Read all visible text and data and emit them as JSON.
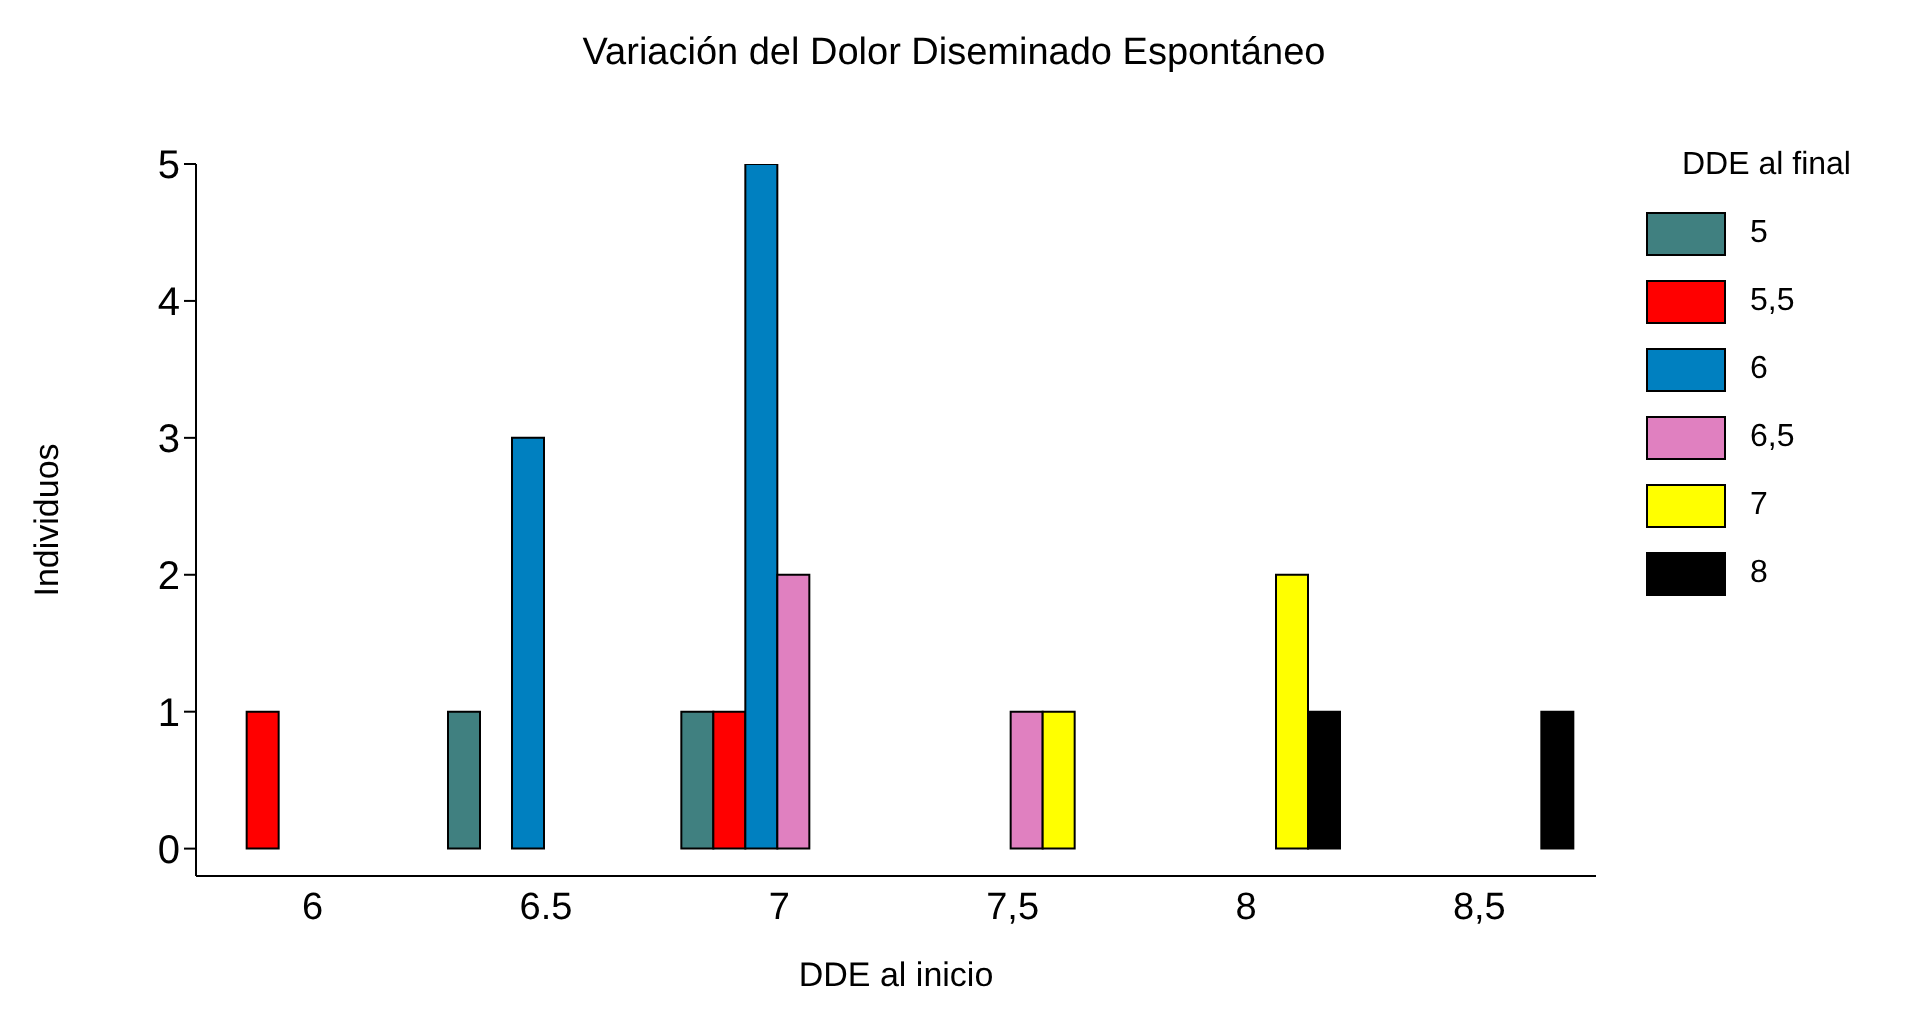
{
  "chart_data": {
    "type": "bar",
    "title": "Variación del Dolor Diseminado Espontáneo",
    "xlabel": "DDE al inicio",
    "ylabel": "Individuos",
    "legend_title": "DDE al final",
    "categories": [
      "6",
      "6.5",
      "7",
      "7,5",
      "8",
      "8,5"
    ],
    "series": [
      {
        "name": "5",
        "color": "#408080",
        "values": [
          0,
          1,
          1,
          0,
          0,
          0
        ]
      },
      {
        "name": "5,5",
        "color": "#ff0000",
        "values": [
          1,
          0,
          1,
          0,
          0,
          0
        ]
      },
      {
        "name": "6",
        "color": "#0080c0",
        "values": [
          0,
          3,
          5,
          0,
          0,
          0
        ]
      },
      {
        "name": "6,5",
        "color": "#e080c0",
        "values": [
          0,
          0,
          2,
          1,
          0,
          0
        ]
      },
      {
        "name": "7",
        "color": "#ffff00",
        "values": [
          0,
          0,
          0,
          1,
          2,
          0
        ]
      },
      {
        "name": "8",
        "color": "#000000",
        "values": [
          0,
          0,
          0,
          0,
          1,
          1
        ]
      }
    ],
    "ylim": [
      -0.2,
      5
    ],
    "yticks": [
      0,
      1,
      2,
      3,
      4,
      5
    ],
    "legend": "right"
  }
}
